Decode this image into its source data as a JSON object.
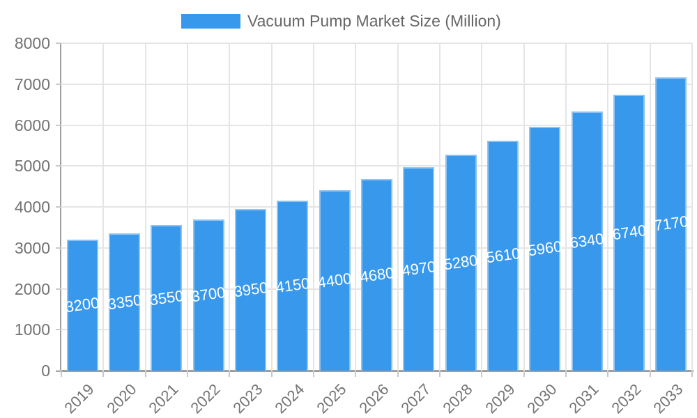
{
  "legend": {
    "label": "Vacuum Pump Market Size (Million)"
  },
  "chart_data": {
    "type": "bar",
    "title": "Vacuum Pump Market Size (Million)",
    "series_name": "Vacuum Pump Market Size (Million)",
    "categories": [
      "2019",
      "2020",
      "2021",
      "2022",
      "2023",
      "2024",
      "2025",
      "2026",
      "2027",
      "2028",
      "2029",
      "2030",
      "2031",
      "2032",
      "2033"
    ],
    "values": [
      3200,
      3350,
      3550,
      3700,
      3950,
      4150,
      4400,
      4680,
      4970,
      5280,
      5610,
      5960,
      6340,
      6740,
      7170
    ],
    "value_labels_visible": true,
    "xlabel": "",
    "ylabel": "",
    "ylim": [
      0,
      8000
    ],
    "yticks": [
      0,
      1000,
      2000,
      3000,
      4000,
      5000,
      6000,
      7000,
      8000
    ],
    "grid": true,
    "legend_position": "top",
    "x_label_rotation_deg": -45,
    "value_label_rotation_deg": -8,
    "colors": {
      "bar_fill": "#3898EC",
      "bar_border": "#8FC2F2",
      "grid_line": "#E5E5E5",
      "axis_line": "#9E9E9E",
      "tick_mark": "#C9C9C9",
      "axis_text": "#737373",
      "legend_text": "#666666",
      "value_label_text": "#FFFFFF",
      "background": "#FFFFFF"
    }
  }
}
